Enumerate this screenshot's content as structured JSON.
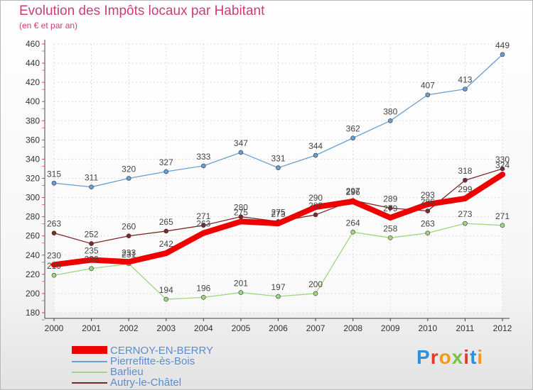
{
  "title": "Evolution des Impôts locaux par Habitant",
  "subtitle": "(en € et par an)",
  "logo_text": "Proxiti",
  "chart_data": {
    "type": "line",
    "title": "Evolution des Impôts locaux par Habitant",
    "subtitle": "(en € et par an)",
    "xlabel": "",
    "ylabel": "",
    "x": [
      "2000",
      "2001",
      "2002",
      "2003",
      "2004",
      "2005",
      "2006",
      "2007",
      "2008",
      "2009",
      "2010",
      "2011",
      "2012"
    ],
    "ylim": [
      180,
      460
    ],
    "yticks": [
      180,
      200,
      220,
      240,
      260,
      280,
      300,
      320,
      340,
      360,
      380,
      400,
      420,
      440,
      460
    ],
    "grid": true,
    "legend_position": "bottom-left",
    "series": [
      {
        "name": "CERNOY-EN-BERRY",
        "color": "#ee0000",
        "values": [
          230,
          235,
          233,
          242,
          263,
          275,
          273,
          290,
          296,
          279,
          293,
          299,
          324
        ]
      },
      {
        "name": "Pierrefitte-ès-Bois",
        "color": "#6a9fd1",
        "values": [
          315,
          311,
          320,
          327,
          333,
          347,
          331,
          344,
          362,
          380,
          407,
          413,
          449
        ]
      },
      {
        "name": "Barlieu",
        "color": "#9fd67f",
        "values": [
          219,
          226,
          231,
          194,
          196,
          201,
          197,
          200,
          264,
          258,
          263,
          273,
          271
        ]
      },
      {
        "name": "Autry-le-Châtel",
        "color": "#7a2a2a",
        "values": [
          263,
          252,
          260,
          265,
          271,
          280,
          275,
          282,
          297,
          289,
          286,
          318,
          330
        ]
      }
    ]
  }
}
